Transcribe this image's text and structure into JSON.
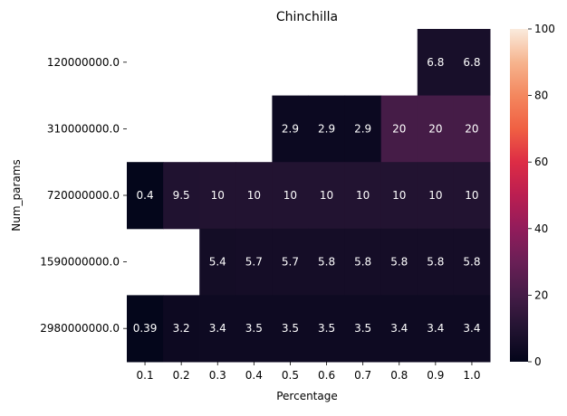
{
  "chart_data": {
    "type": "heatmap",
    "title": "Chinchilla",
    "xlabel": "Percentage",
    "ylabel": "Num_params",
    "x_categories": [
      "0.1",
      "0.2",
      "0.3",
      "0.4",
      "0.5",
      "0.6",
      "0.7",
      "0.8",
      "0.9",
      "1.0"
    ],
    "y_categories": [
      "120000000.0",
      "310000000.0",
      "720000000.0",
      "1590000000.0",
      "2980000000.0"
    ],
    "values": [
      [
        null,
        null,
        null,
        null,
        null,
        null,
        null,
        null,
        6.8,
        6.8
      ],
      [
        null,
        null,
        null,
        null,
        2.9,
        2.9,
        2.9,
        20,
        20,
        20
      ],
      [
        0.4,
        9.5,
        10,
        10,
        10,
        10,
        10,
        10,
        10,
        10
      ],
      [
        null,
        null,
        5.4,
        5.7,
        5.7,
        5.8,
        5.8,
        5.8,
        5.8,
        5.8
      ],
      [
        0.39,
        3.2,
        3.4,
        3.5,
        3.5,
        3.5,
        3.5,
        3.4,
        3.4,
        3.4
      ]
    ],
    "colorbar": {
      "min": 0,
      "max": 100,
      "ticks": [
        "0",
        "20",
        "40",
        "60",
        "80",
        "100"
      ],
      "colormap": "rocket"
    },
    "grid": false
  }
}
